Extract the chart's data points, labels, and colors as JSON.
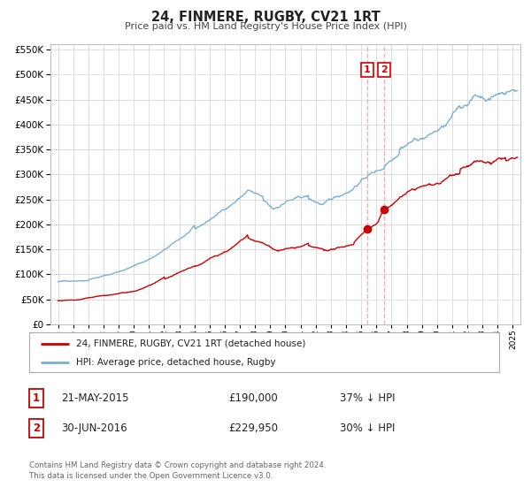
{
  "title": "24, FINMERE, RUGBY, CV21 1RT",
  "subtitle": "Price paid vs. HM Land Registry's House Price Index (HPI)",
  "legend_line1": "24, FINMERE, RUGBY, CV21 1RT (detached house)",
  "legend_line2": "HPI: Average price, detached house, Rugby",
  "annotation1_date": "21-MAY-2015",
  "annotation1_price": "£190,000",
  "annotation1_hpi": "37% ↓ HPI",
  "annotation2_date": "30-JUN-2016",
  "annotation2_price": "£229,950",
  "annotation2_hpi": "30% ↓ HPI",
  "sale1_date_num": 2015.385,
  "sale1_price": 190000,
  "sale2_date_num": 2016.497,
  "sale2_price": 229950,
  "vline1_date": 2015.385,
  "vline2_date": 2016.497,
  "red_line_color": "#cc0000",
  "blue_line_color": "#7ab0d4",
  "vline_color": "#ffaaaa",
  "marker_color": "#cc0000",
  "annotation_box_color": "#cc0000",
  "grid_color": "#dddddd",
  "background_color": "#ffffff",
  "ylim_min": 0,
  "ylim_max": 560000,
  "xlim_min": 1994.5,
  "xlim_max": 2025.5,
  "footer_text": "Contains HM Land Registry data © Crown copyright and database right 2024.\nThis data is licensed under the Open Government Licence v3.0."
}
